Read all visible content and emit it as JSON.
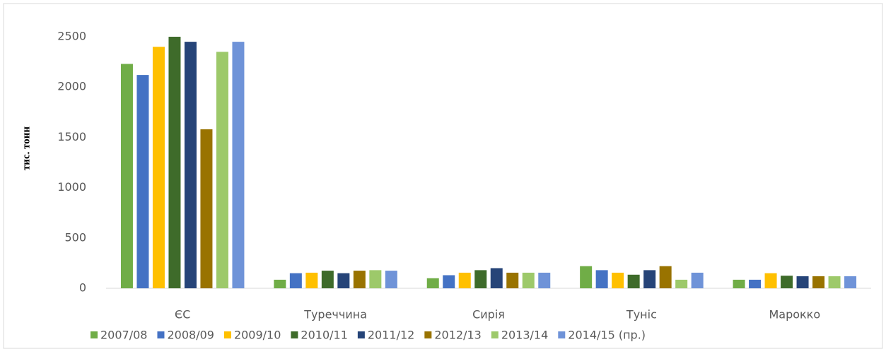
{
  "chart_data": {
    "type": "bar",
    "y_label": "тис. тонн",
    "categories": [
      "ЄС",
      "Туреччина",
      "Сирія",
      "Туніс",
      "Марокко"
    ],
    "series": [
      {
        "name": "2007/08",
        "color": "#70ad47",
        "values": [
          2230,
          85,
          100,
          220,
          85
        ]
      },
      {
        "name": "2008/09",
        "color": "#4472c4",
        "values": [
          2120,
          150,
          130,
          180,
          85
        ]
      },
      {
        "name": "2009/10",
        "color": "#ffc000",
        "values": [
          2400,
          155,
          155,
          155,
          150
        ]
      },
      {
        "name": "2010/11",
        "color": "#3e6b2a",
        "values": [
          2500,
          175,
          180,
          135,
          125
        ]
      },
      {
        "name": "2011/12",
        "color": "#264478",
        "values": [
          2450,
          150,
          200,
          180,
          120
        ]
      },
      {
        "name": "2012/13",
        "color": "#997300",
        "values": [
          1580,
          175,
          155,
          220,
          120
        ]
      },
      {
        "name": "2013/14",
        "color": "#9dc96a",
        "values": [
          2350,
          180,
          155,
          85,
          120
        ]
      },
      {
        "name": "2014/15 (пр.)",
        "color": "#6f93d8",
        "values": [
          2450,
          175,
          155,
          155,
          120
        ]
      }
    ],
    "ylim": [
      0,
      2500
    ],
    "yticks": [
      0,
      500,
      1000,
      1500,
      2000,
      2500
    ],
    "grid": false,
    "legend": "bottom"
  }
}
